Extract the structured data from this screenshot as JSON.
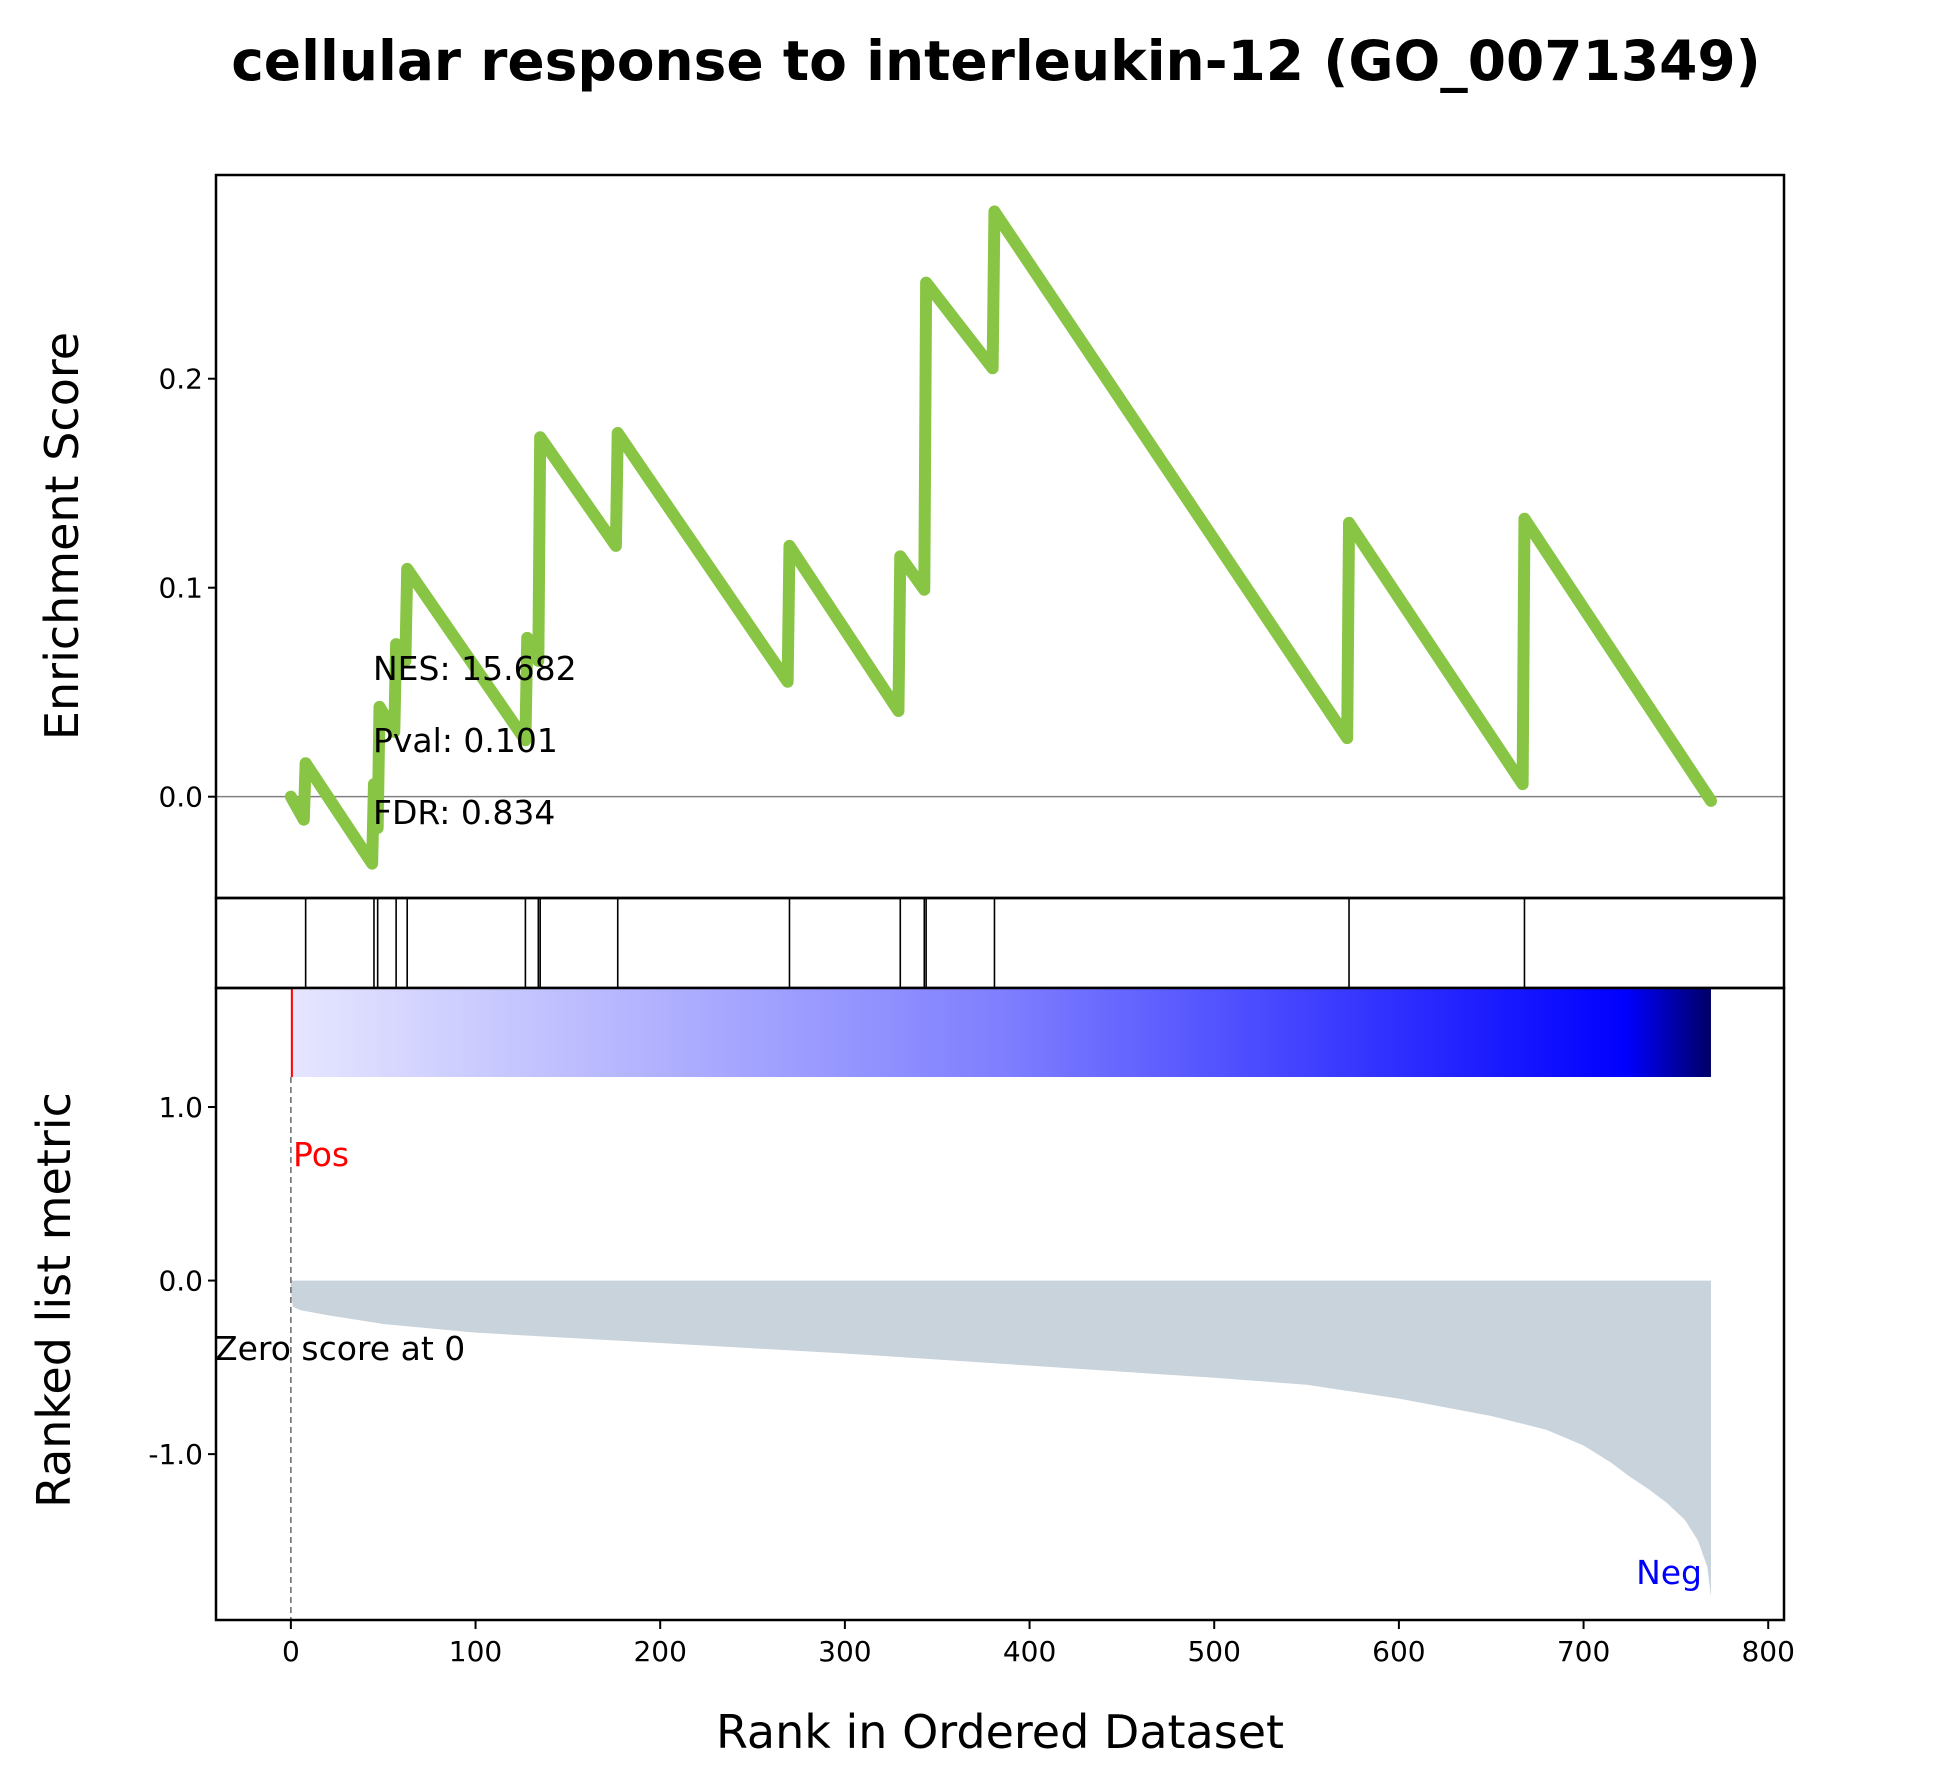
{
  "chart_data": {
    "type": "line",
    "title": "cellular response to interleukin-12 (GO_0071349)",
    "xlabel": "Rank in Ordered Dataset",
    "xlim": [
      -40,
      808
    ],
    "xticks": [
      0,
      100,
      200,
      300,
      400,
      500,
      600,
      700,
      800
    ],
    "line_color": "#88c544",
    "bar_color": "#c9d3dc",
    "enrichment_panel": {
      "ylabel": "Enrichment Score",
      "ylim": [
        -0.048,
        0.297
      ],
      "yticks": [
        0.0,
        0.1,
        0.2
      ],
      "ytick_labels": [
        "0.0",
        "0.1",
        "0.2"
      ],
      "running_es": {
        "x": [
          0,
          7,
          8,
          44,
          45,
          47,
          48,
          56,
          57,
          62,
          63,
          127,
          128,
          134,
          135,
          176,
          177,
          269,
          270,
          329,
          330,
          343,
          344,
          380,
          381,
          572,
          573,
          667,
          668,
          769
        ],
        "y": [
          0.0,
          -0.011,
          0.016,
          -0.032,
          0.006,
          -0.015,
          0.043,
          0.031,
          0.073,
          0.065,
          0.109,
          0.027,
          0.076,
          0.065,
          0.172,
          0.12,
          0.174,
          0.055,
          0.12,
          0.041,
          0.115,
          0.099,
          0.246,
          0.205,
          0.28,
          0.028,
          0.131,
          0.006,
          0.133,
          -0.002
        ]
      },
      "stats": [
        "NES: 15.682",
        "Pval: 0.101",
        "FDR: 0.834"
      ]
    },
    "hits_panel": {
      "hit_ranks": [
        8,
        45,
        47,
        57,
        63,
        127,
        134,
        135,
        177,
        270,
        330,
        343,
        344,
        381,
        573,
        668
      ]
    },
    "ranked_metric_panel": {
      "ylabel": "Ranked list metric",
      "ylim": [
        -1.95,
        1.68
      ],
      "yticks": [
        1.0,
        0.0,
        -1.0
      ],
      "ytick_labels": [
        "1.0",
        "0.0",
        "-1.0"
      ],
      "n_genes": 770,
      "metric_profile": {
        "rank": [
          0,
          1,
          5,
          20,
          50,
          100,
          200,
          300,
          400,
          500,
          550,
          600,
          650,
          680,
          700,
          715,
          725,
          735,
          745,
          755,
          762,
          767,
          769
        ],
        "value": [
          -0.05,
          -0.15,
          -0.17,
          -0.2,
          -0.25,
          -0.3,
          -0.36,
          -0.42,
          -0.49,
          -0.56,
          -0.6,
          -0.68,
          -0.78,
          -0.86,
          -0.95,
          -1.05,
          -1.13,
          -1.2,
          -1.28,
          -1.38,
          -1.5,
          -1.65,
          -1.82
        ]
      },
      "zero_score_label": "Zero score at 0",
      "zero_score_rank": 0,
      "pos_label": "Pos",
      "neg_label": "Neg",
      "pos_color": "#ff0000",
      "neg_color": "#0000ff"
    }
  }
}
